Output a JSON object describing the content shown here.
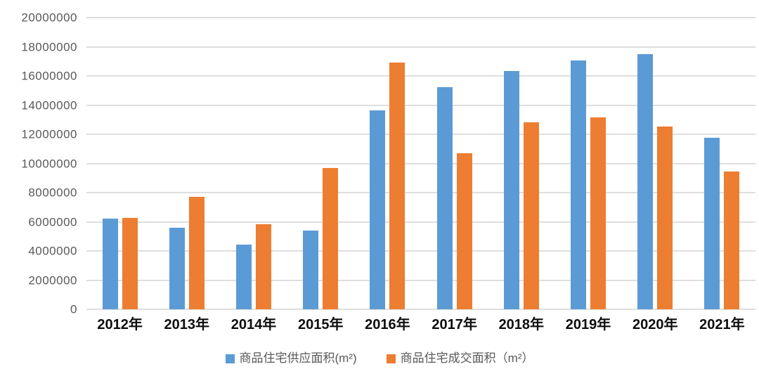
{
  "chart_data": {
    "type": "bar",
    "title": "",
    "xlabel": "",
    "ylabel": "",
    "categories": [
      "2012年",
      "2013年",
      "2014年",
      "2015年",
      "2016年",
      "2017年",
      "2018年",
      "2019年",
      "2020年",
      "2021年"
    ],
    "series": [
      {
        "name": "商品住宅供应面积(m²)",
        "color": "#5B9BD5",
        "values": [
          6200000,
          5600000,
          4450000,
          5400000,
          13650000,
          15250000,
          16350000,
          17050000,
          17500000,
          11750000
        ]
      },
      {
        "name": "商品住宅成交面积（m²）",
        "color": "#ED7D31",
        "values": [
          6250000,
          7700000,
          5850000,
          9700000,
          16900000,
          10700000,
          12800000,
          13150000,
          12550000,
          9450000
        ]
      }
    ],
    "ylim": [
      0,
      20000000
    ],
    "y_tick_step": 2000000,
    "y_tick_labels": [
      "0",
      "2000000",
      "4000000",
      "6000000",
      "8000000",
      "10000000",
      "12000000",
      "14000000",
      "16000000",
      "18000000",
      "20000000"
    ],
    "grid": true,
    "gridline_color": "#dedede",
    "legend_position": "bottom"
  }
}
